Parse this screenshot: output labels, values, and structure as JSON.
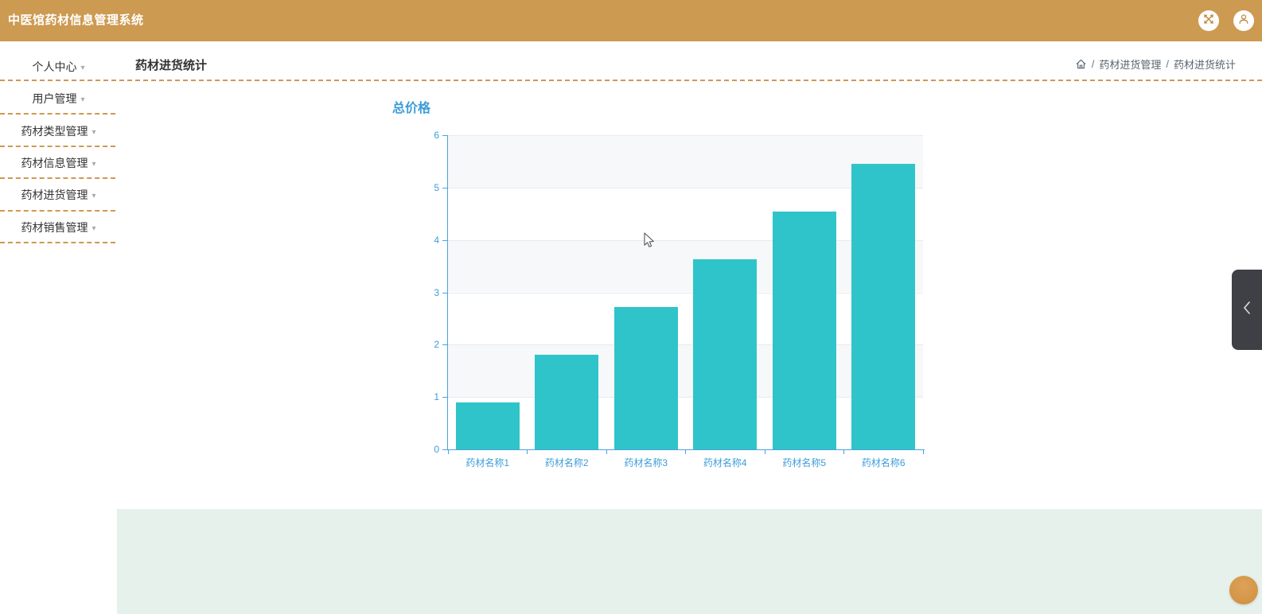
{
  "app": {
    "title": "中医馆药材信息管理系统"
  },
  "topbar": {
    "icons": [
      {
        "name": "fullscreen-arrows"
      },
      {
        "name": "user-profile"
      }
    ]
  },
  "header": {
    "page_title": "药材进货统计",
    "breadcrumb": {
      "home_icon": "home",
      "separator": "/",
      "crumbs": [
        "药材进货管理",
        "药材进货统计"
      ]
    }
  },
  "sidebar": {
    "items": [
      {
        "label": "个人中心"
      },
      {
        "label": "用户管理"
      },
      {
        "label": "药材类型管理"
      },
      {
        "label": "药材信息管理"
      },
      {
        "label": "药材进货管理"
      },
      {
        "label": "药材销售管理"
      }
    ]
  },
  "chart_data": {
    "type": "bar",
    "title": "总价格",
    "categories": [
      "药材名称1",
      "药材名称2",
      "药材名称3",
      "药材名称4",
      "药材名称5",
      "药材名称6"
    ],
    "values": [
      0.9,
      1.81,
      2.72,
      3.63,
      4.54,
      5.45
    ],
    "xlabel": "",
    "ylabel": "",
    "ylim": [
      0,
      6
    ],
    "y_ticks": [
      0,
      1,
      2,
      3,
      4,
      5,
      6
    ],
    "grid": true,
    "split_area": true,
    "legend_position": "none"
  },
  "panel_toggle": {
    "chevron": "left"
  },
  "colors": {
    "topbar_bg": "#cd9a52",
    "dashed_line": "#cd9a52",
    "bar_fill": "#2fc4c9",
    "axis_line": "#4aa3df",
    "axis_label": "#3d9cd9",
    "chart_title": "#3d9cd9",
    "split_band": "#f7f8fa",
    "footer_bg": "#e7f1ec",
    "fab_bg": "#d0923f",
    "toggle_bg": "#3e4045"
  }
}
